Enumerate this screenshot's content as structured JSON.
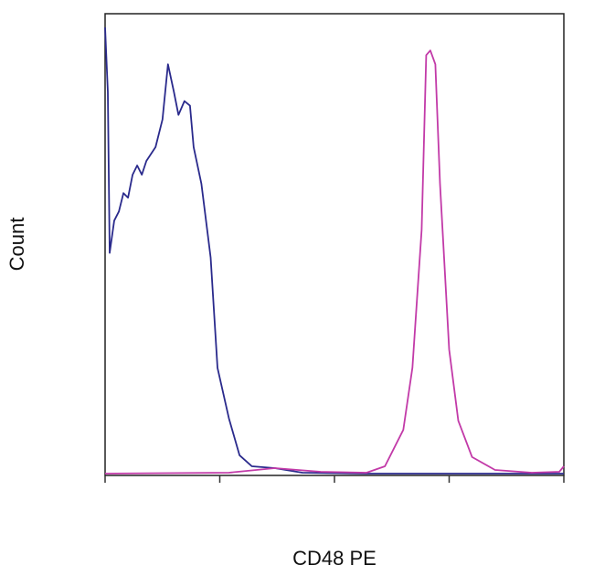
{
  "chart_data": {
    "type": "line",
    "x_label": "CD48 PE",
    "y_label": "Count",
    "xlim": [
      0,
      100
    ],
    "ylim": [
      0,
      100
    ],
    "xticks": [
      0,
      25,
      50,
      75,
      100
    ],
    "series": [
      {
        "color": "#2a2a8c",
        "x": [
          0,
          0.6,
          1,
          2,
          3,
          4,
          5,
          6,
          7,
          8,
          9,
          11,
          12.5,
          13.7,
          15,
          16,
          17.3,
          18.5,
          19.3,
          21,
          23,
          24.5,
          27,
          29.3,
          32,
          37,
          43,
          57,
          100
        ],
        "values": [
          97,
          83,
          48,
          55,
          57,
          61,
          60,
          65,
          67,
          65,
          68,
          71,
          77,
          89,
          83,
          78,
          81,
          80,
          71,
          63,
          47,
          23,
          12,
          4,
          1.6,
          1.2,
          0.2,
          0,
          0
        ]
      },
      {
        "color": "#c23aa8",
        "x": [
          0,
          27,
          37,
          47,
          57,
          61,
          65,
          67,
          69,
          70,
          70.9,
          72,
          73,
          75,
          77,
          80,
          85,
          93,
          99,
          100
        ],
        "values": [
          0,
          0.2,
          1.2,
          0.4,
          0.2,
          1.6,
          9.5,
          23,
          53,
          91,
          92,
          89,
          63,
          27,
          11.5,
          3.6,
          0.8,
          0.2,
          0.4,
          1.6
        ]
      }
    ]
  }
}
